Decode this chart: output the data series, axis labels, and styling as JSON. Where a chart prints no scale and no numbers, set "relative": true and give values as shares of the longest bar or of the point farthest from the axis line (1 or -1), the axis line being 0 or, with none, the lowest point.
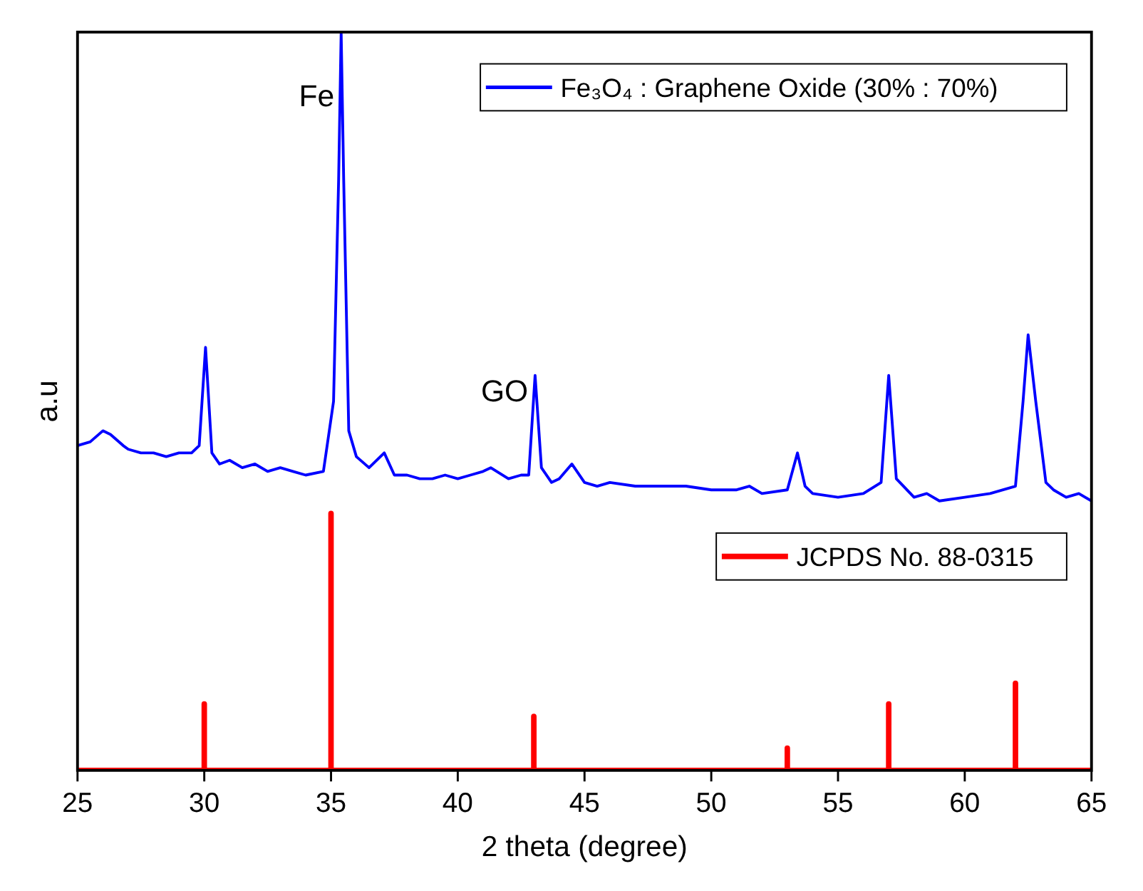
{
  "chart_data": {
    "type": "line",
    "relative": true,
    "xlabel": "2 theta (degree)",
    "ylabel": "a.u",
    "xlim": [
      25,
      65
    ],
    "xticks": [
      25,
      30,
      35,
      40,
      45,
      50,
      55,
      60,
      65
    ],
    "legend": "top right",
    "grid": false,
    "line_style": "solid",
    "marker": "none",
    "annotations": [
      {
        "text": "Fe",
        "x": 35.4,
        "y": 0.9
      },
      {
        "text": "GO",
        "x": 43.05,
        "y": 0.5
      }
    ],
    "series": [
      {
        "name": "Fe₃O₄ : Graphene Oxide (30% : 70%)",
        "color": "#0000ff",
        "x": [
          25,
          25.5,
          26,
          26.3,
          26.8,
          27,
          27.5,
          28,
          28.5,
          29,
          29.5,
          29.8,
          30.05,
          30.3,
          30.6,
          31,
          31.5,
          32,
          32.5,
          33,
          33.5,
          34,
          34.7,
          35.1,
          35.3,
          35.4,
          35.5,
          35.7,
          36,
          36.5,
          37.1,
          37.5,
          38,
          38.5,
          39,
          39.5,
          40,
          40.5,
          41,
          41.3,
          42,
          42.5,
          42.8,
          43.05,
          43.3,
          43.7,
          44,
          44.5,
          45,
          45.5,
          46,
          47,
          48,
          49,
          50,
          51,
          51.5,
          52,
          53,
          53.4,
          53.7,
          54,
          55,
          56,
          56.7,
          57,
          57.3,
          58,
          58.5,
          59,
          60,
          61,
          62,
          62.3,
          62.5,
          62.8,
          63.2,
          63.5,
          64,
          64.5,
          65
        ],
        "values": [
          0.44,
          0.445,
          0.46,
          0.455,
          0.44,
          0.435,
          0.43,
          0.43,
          0.425,
          0.43,
          0.43,
          0.44,
          0.573,
          0.43,
          0.415,
          0.42,
          0.41,
          0.415,
          0.405,
          0.41,
          0.405,
          0.4,
          0.405,
          0.5,
          0.8,
          1,
          0.8,
          0.46,
          0.425,
          0.41,
          0.43,
          0.4,
          0.4,
          0.395,
          0.395,
          0.4,
          0.395,
          0.4,
          0.405,
          0.41,
          0.395,
          0.4,
          0.4,
          0.535,
          0.41,
          0.39,
          0.395,
          0.415,
          0.39,
          0.385,
          0.39,
          0.385,
          0.385,
          0.385,
          0.38,
          0.38,
          0.385,
          0.375,
          0.38,
          0.43,
          0.385,
          0.375,
          0.37,
          0.375,
          0.39,
          0.535,
          0.395,
          0.37,
          0.375,
          0.365,
          0.37,
          0.375,
          0.385,
          0.5,
          0.59,
          0.5,
          0.39,
          0.38,
          0.37,
          0.375,
          0.365
        ]
      },
      {
        "name": "JCPDS No. 88-0315",
        "color": "#ff0000",
        "x": [
          25,
          30,
          30,
          30,
          35,
          35,
          35,
          43,
          43,
          43,
          53,
          53,
          53,
          57,
          57,
          57,
          62,
          62,
          62,
          65
        ],
        "values": [
          0,
          0,
          0.09,
          0,
          0,
          0.348,
          0,
          0,
          0.073,
          0,
          0,
          0.03,
          0,
          0,
          0.09,
          0,
          0,
          0.118,
          0,
          0
        ]
      }
    ]
  }
}
